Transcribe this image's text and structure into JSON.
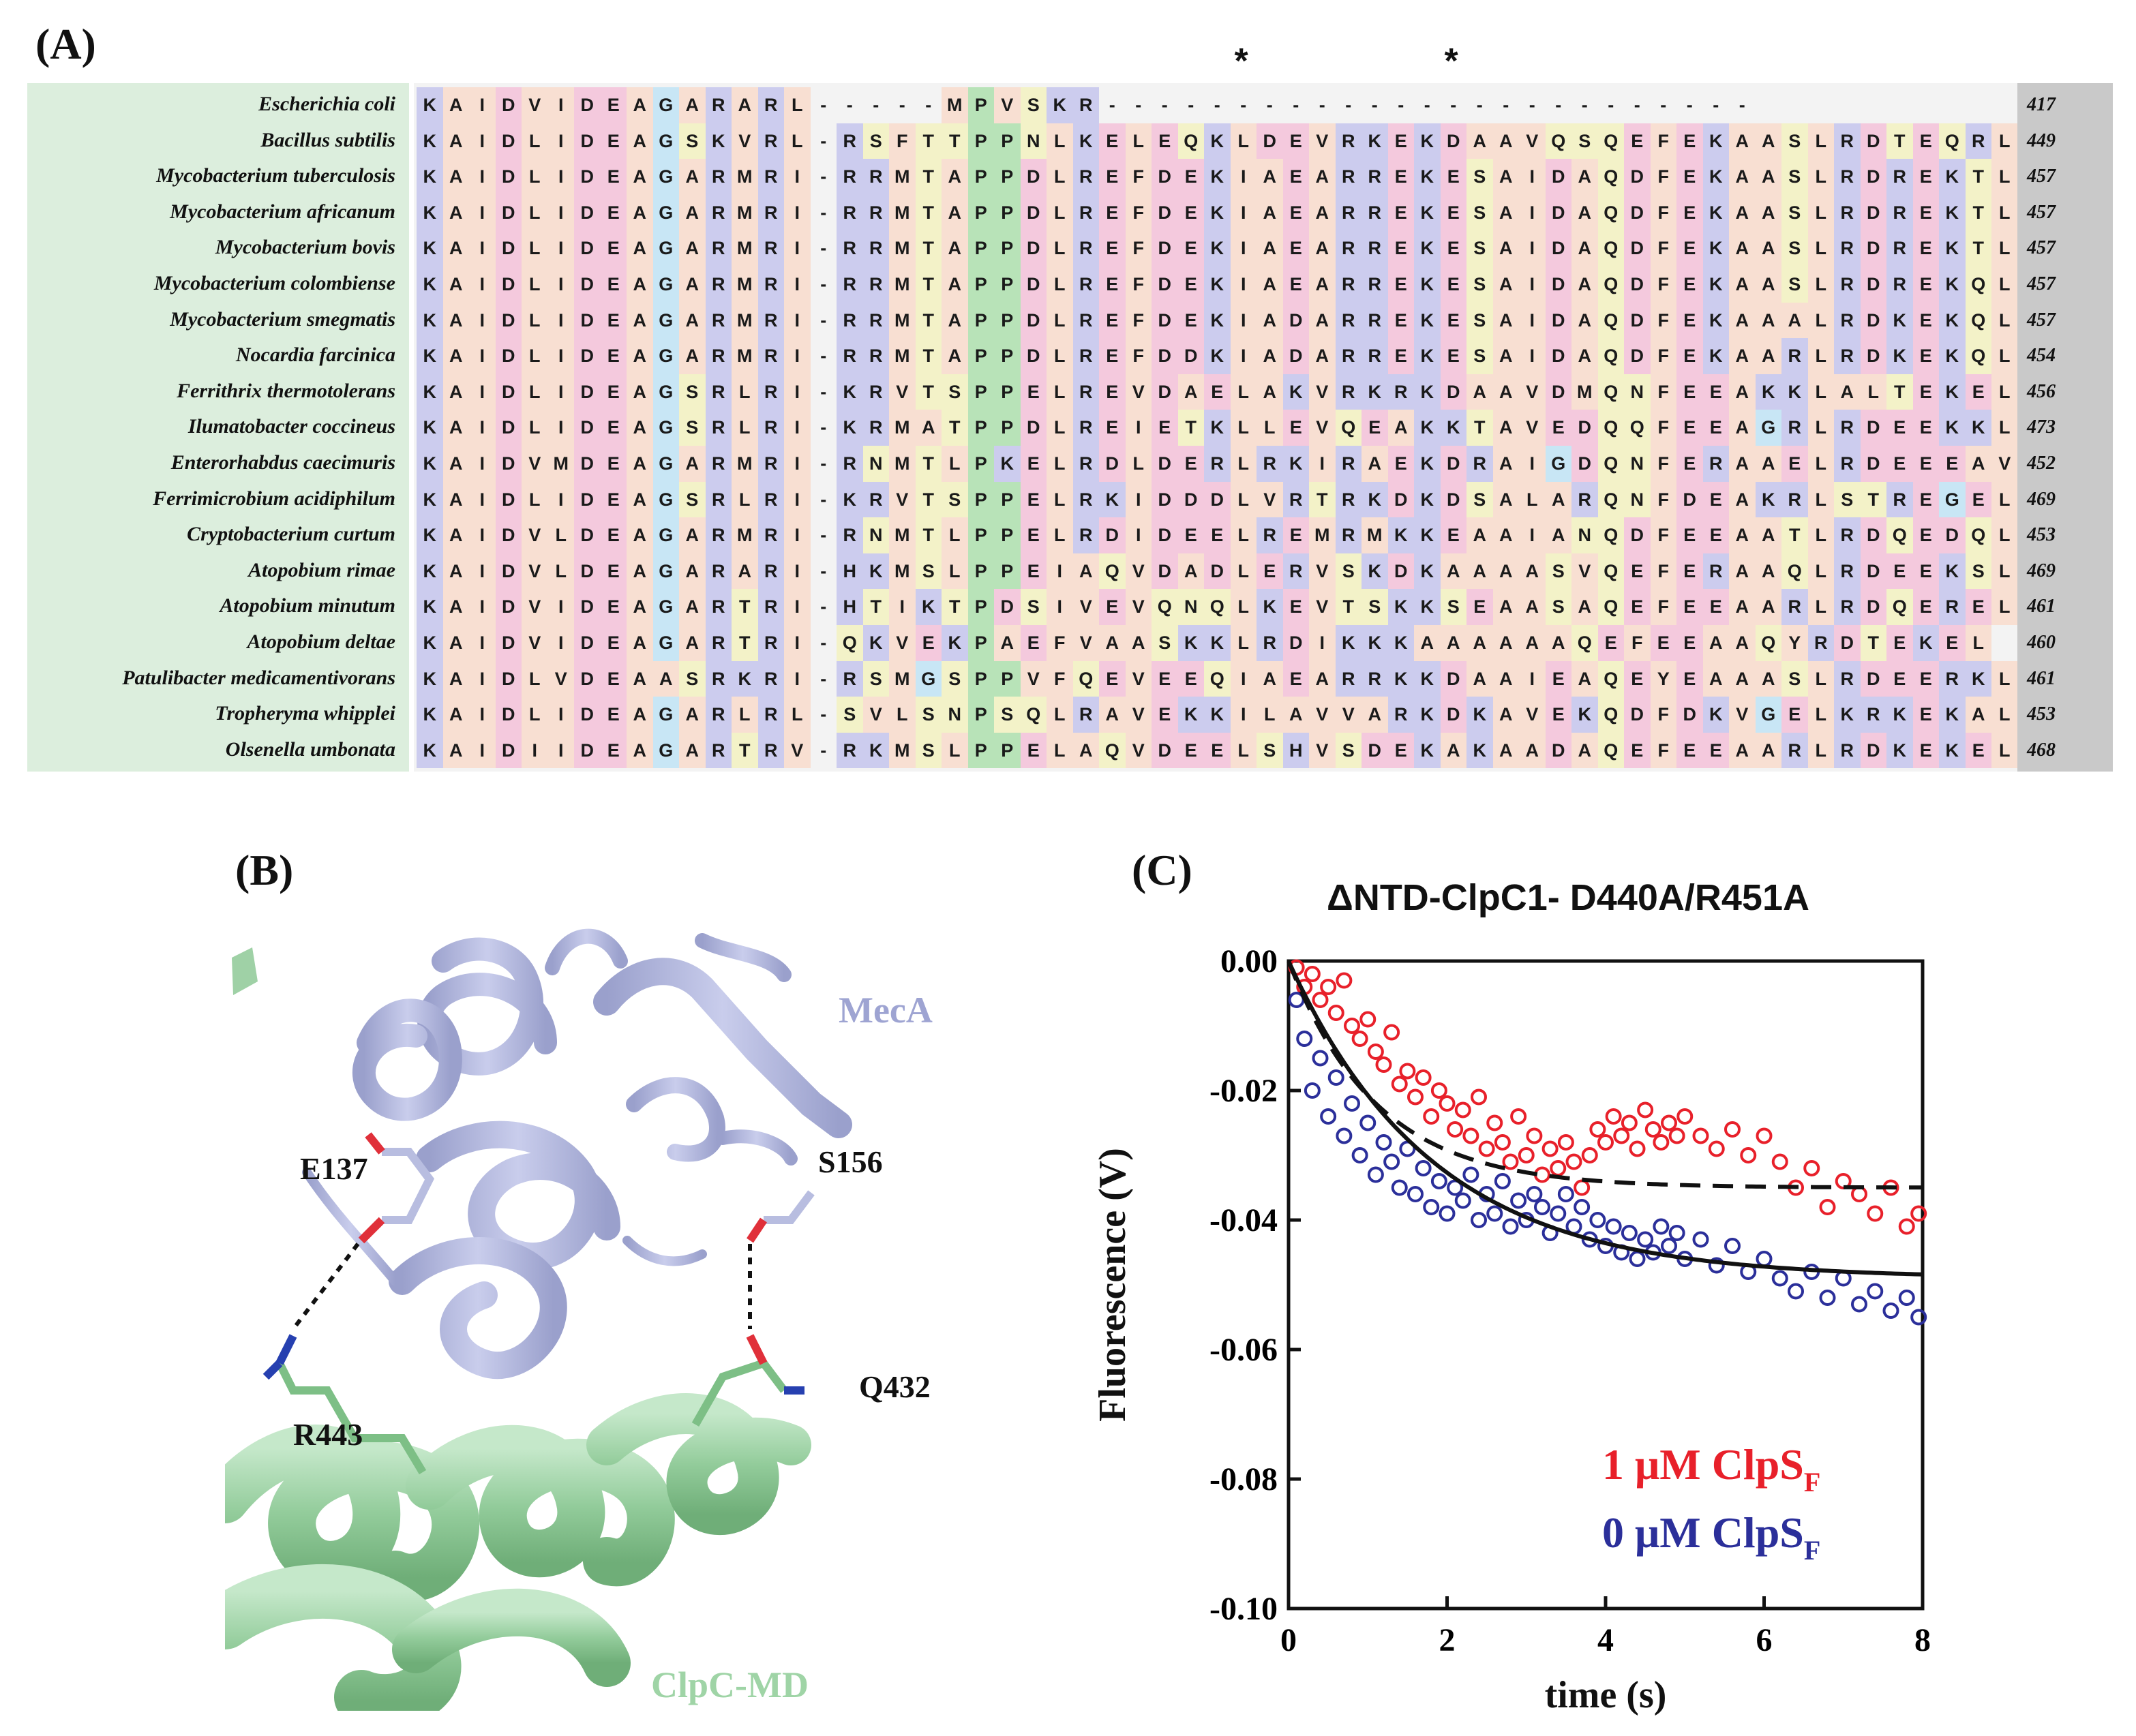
{
  "panels": {
    "a": "(A)",
    "b": "(B)",
    "c": "(C)"
  },
  "alignment": {
    "stars": [
      "*",
      "*"
    ],
    "star_columns": [
      31,
      39
    ],
    "rows": [
      {
        "species": "Escherichia coli",
        "seq": "KAIDVIDEAGARARL-----MPVSKR-------------------------",
        "num": "417"
      },
      {
        "species": "Bacillus subtilis",
        "seq": "KAIDLIDEAGSKVRL-RSFTTPPNLKELEQKLDEVRKEKDAAVQSQEFEKAASLRDTEQRL",
        "num": "449"
      },
      {
        "species": "Mycobacterium tuberculosis",
        "seq": "KAIDLIDEAGARMRI-RRMTAPPDLREFDEKIAEARREKESAIDAQDFEKAASLRDREKTL",
        "num": "457"
      },
      {
        "species": "Mycobacterium africanum",
        "seq": "KAIDLIDEAGARMRI-RRMTAPPDLREFDEKIAEARREKESAIDAQDFEKAASLRDREKTL",
        "num": "457"
      },
      {
        "species": "Mycobacterium bovis",
        "seq": "KAIDLIDEAGARMRI-RRMTAPPDLREFDEKIAEARREKESAIDAQDFEKAASLRDREKTL",
        "num": "457"
      },
      {
        "species": "Mycobacterium colombiense",
        "seq": "KAIDLIDEAGARMRI-RRMTAPPDLREFDEKIAEARREKESAIDAQDFEKAASLRDREKQL",
        "num": "457"
      },
      {
        "species": "Mycobacterium smegmatis",
        "seq": "KAIDLIDEAGARMRI-RRMTAPPDLREFDEKIADARREKESAIDAQDFEKAAALRDKEKQL",
        "num": "457"
      },
      {
        "species": "Nocardia farcinica",
        "seq": "KAIDLIDEAGARMRI-RRMTAPPDLREFDDKIADARREKESAIDAQDFEKAARLRDKEKQL",
        "num": "454"
      },
      {
        "species": "Ferrithrix thermotolerans",
        "seq": "KAIDLIDEAGSRLRI-KRVTSPPELREVDAELAKVRKRKDAAVDMQNFEEAKKLALTEKEL",
        "num": "456"
      },
      {
        "species": "Ilumatobacter coccineus",
        "seq": "KAIDLIDEAGSRLRI-KRMATPPDLREIETKLLEVQEAKKTAVEDQQFEEAGRLRDEEKKL",
        "num": "473"
      },
      {
        "species": "Enterorhabdus caecimuris",
        "seq": "KAIDVMDEAGARMRI-RNMTLPKELRDLDERLRKIRAEKDRAIGDQNFERAAELRDEEEAV",
        "num": "452"
      },
      {
        "species": "Ferrimicrobium acidiphilum",
        "seq": "KAIDLIDEAGSRLRI-KRVTSPPELRKIDDDLVRTRKDKDSALARQNFDEAKRLSTREGEL",
        "num": "469"
      },
      {
        "species": "Cryptobacterium curtum",
        "seq": "KAIDVLDEAGARMRI-RNMTLPPELRDIDEELREMRMKKEAAIANQDFEEAATLRDQEDQL",
        "num": "453"
      },
      {
        "species": "Atopobium rimae",
        "seq": "KAIDVLDEAGARARI-HKMSLPPEIAQVDADLERVSKDKAAAASVQEFERAAQLRDEEKSL",
        "num": "469"
      },
      {
        "species": "Atopobium minutum",
        "seq": "KAIDVIDEAGARTRI-HTIKTPDSIVEVQNQLKEVTSKKSEAASAQEFEEAARLRDQEREL",
        "num": "461"
      },
      {
        "species": "Atopobium deltae",
        "seq": "KAIDVIDEAGARTRI-QKVEKPAEFVAASKKLRDIKKKAAAAAAQEFEEAAQYRDTEKEL",
        "num": "460"
      },
      {
        "species": "Patulibacter medicamentivorans",
        "seq": "KAIDLVDEAASRKRI-RSMGSPPVFQEVEEQIAEARRKKDAAIEAQEYEAAASLRDEERKL",
        "num": "461"
      },
      {
        "species": "Tropheryma whipplei",
        "seq": "KAIDLIDEAGARLRL-SVLSNPSQLRAVEKKILAVVARKDKAVEKQDFDKVGELKRKEKAL",
        "num": "453"
      },
      {
        "species": "Olsenella umbonata",
        "seq": "KAIDIIDEAGARTRV-RKMSLPPELAQVDEELSHVSDEKAKAADAQEFEEAARLRDKEKEL",
        "num": "468"
      }
    ]
  },
  "structure": {
    "labels": {
      "meca": "MecA",
      "clpc": "ClpC-MD",
      "e137": "E137",
      "s156": "S156",
      "r443": "R443",
      "q432": "Q432"
    },
    "colors": {
      "meca": "#b8bde0",
      "clpc": "#a6d8ad"
    }
  },
  "legend": {
    "s1_prefix": "1 μM ClpS",
    "s1_sub": "F",
    "s2_prefix": "0 μM ClpS",
    "s2_sub": "F"
  },
  "chart_data": {
    "type": "scatter",
    "title": "ΔNTD-ClpC1- D440A/R451A",
    "xlabel": "time (s)",
    "ylabel": "Fluorescence (V)",
    "xlim": [
      0,
      8
    ],
    "ylim": [
      -0.1,
      0.0
    ],
    "xticks": [
      "0",
      "2",
      "4",
      "6",
      "8"
    ],
    "yticks": [
      "0.00",
      "-0.02",
      "-0.04",
      "-0.06",
      "-0.08",
      "-0.10"
    ],
    "series": [
      {
        "name": "1 μM ClpS_F",
        "color": "#e8202a",
        "fit": "dashed",
        "fit_params": {
          "a": 0.036,
          "k": 0.9,
          "c": -0.035
        },
        "points": [
          [
            0.1,
            -0.001
          ],
          [
            0.2,
            -0.004
          ],
          [
            0.3,
            -0.002
          ],
          [
            0.4,
            -0.006
          ],
          [
            0.5,
            -0.004
          ],
          [
            0.6,
            -0.008
          ],
          [
            0.7,
            -0.003
          ],
          [
            0.8,
            -0.01
          ],
          [
            0.9,
            -0.012
          ],
          [
            1.0,
            -0.009
          ],
          [
            1.1,
            -0.014
          ],
          [
            1.2,
            -0.016
          ],
          [
            1.3,
            -0.011
          ],
          [
            1.4,
            -0.019
          ],
          [
            1.5,
            -0.017
          ],
          [
            1.6,
            -0.021
          ],
          [
            1.7,
            -0.018
          ],
          [
            1.8,
            -0.024
          ],
          [
            1.9,
            -0.02
          ],
          [
            2.0,
            -0.022
          ],
          [
            2.1,
            -0.026
          ],
          [
            2.2,
            -0.023
          ],
          [
            2.3,
            -0.027
          ],
          [
            2.4,
            -0.021
          ],
          [
            2.5,
            -0.029
          ],
          [
            2.6,
            -0.025
          ],
          [
            2.7,
            -0.028
          ],
          [
            2.8,
            -0.031
          ],
          [
            2.9,
            -0.024
          ],
          [
            3.0,
            -0.03
          ],
          [
            3.1,
            -0.027
          ],
          [
            3.2,
            -0.033
          ],
          [
            3.3,
            -0.029
          ],
          [
            3.4,
            -0.032
          ],
          [
            3.5,
            -0.028
          ],
          [
            3.6,
            -0.031
          ],
          [
            3.7,
            -0.035
          ],
          [
            3.8,
            -0.03
          ],
          [
            3.9,
            -0.026
          ],
          [
            4.0,
            -0.028
          ],
          [
            4.1,
            -0.024
          ],
          [
            4.2,
            -0.027
          ],
          [
            4.3,
            -0.025
          ],
          [
            4.4,
            -0.029
          ],
          [
            4.5,
            -0.023
          ],
          [
            4.6,
            -0.026
          ],
          [
            4.7,
            -0.028
          ],
          [
            4.8,
            -0.025
          ],
          [
            4.9,
            -0.027
          ],
          [
            5.0,
            -0.024
          ],
          [
            5.2,
            -0.027
          ],
          [
            5.4,
            -0.029
          ],
          [
            5.6,
            -0.026
          ],
          [
            5.8,
            -0.03
          ],
          [
            6.0,
            -0.027
          ],
          [
            6.2,
            -0.031
          ],
          [
            6.4,
            -0.035
          ],
          [
            6.6,
            -0.032
          ],
          [
            6.8,
            -0.038
          ],
          [
            7.0,
            -0.034
          ],
          [
            7.2,
            -0.036
          ],
          [
            7.4,
            -0.039
          ],
          [
            7.6,
            -0.035
          ],
          [
            7.8,
            -0.041
          ],
          [
            7.95,
            -0.039
          ]
        ]
      },
      {
        "name": "0 μM ClpS_F",
        "color": "#2b2f9a",
        "fit": "solid",
        "fit_params": {
          "a": 0.042,
          "k": 0.55,
          "c": -0.049
        },
        "points": [
          [
            0.1,
            -0.006
          ],
          [
            0.2,
            -0.012
          ],
          [
            0.3,
            -0.02
          ],
          [
            0.4,
            -0.015
          ],
          [
            0.5,
            -0.024
          ],
          [
            0.6,
            -0.018
          ],
          [
            0.7,
            -0.027
          ],
          [
            0.8,
            -0.022
          ],
          [
            0.9,
            -0.03
          ],
          [
            1.0,
            -0.025
          ],
          [
            1.1,
            -0.033
          ],
          [
            1.2,
            -0.028
          ],
          [
            1.3,
            -0.031
          ],
          [
            1.4,
            -0.035
          ],
          [
            1.5,
            -0.029
          ],
          [
            1.6,
            -0.036
          ],
          [
            1.7,
            -0.032
          ],
          [
            1.8,
            -0.038
          ],
          [
            1.9,
            -0.034
          ],
          [
            2.0,
            -0.039
          ],
          [
            2.1,
            -0.035
          ],
          [
            2.2,
            -0.037
          ],
          [
            2.3,
            -0.033
          ],
          [
            2.4,
            -0.04
          ],
          [
            2.5,
            -0.036
          ],
          [
            2.6,
            -0.039
          ],
          [
            2.7,
            -0.034
          ],
          [
            2.8,
            -0.041
          ],
          [
            2.9,
            -0.037
          ],
          [
            3.0,
            -0.04
          ],
          [
            3.1,
            -0.036
          ],
          [
            3.2,
            -0.038
          ],
          [
            3.3,
            -0.042
          ],
          [
            3.4,
            -0.039
          ],
          [
            3.5,
            -0.036
          ],
          [
            3.6,
            -0.041
          ],
          [
            3.7,
            -0.038
          ],
          [
            3.8,
            -0.043
          ],
          [
            3.9,
            -0.04
          ],
          [
            4.0,
            -0.044
          ],
          [
            4.1,
            -0.041
          ],
          [
            4.2,
            -0.045
          ],
          [
            4.3,
            -0.042
          ],
          [
            4.4,
            -0.046
          ],
          [
            4.5,
            -0.043
          ],
          [
            4.6,
            -0.045
          ],
          [
            4.7,
            -0.041
          ],
          [
            4.8,
            -0.044
          ],
          [
            4.9,
            -0.042
          ],
          [
            5.0,
            -0.046
          ],
          [
            5.2,
            -0.043
          ],
          [
            5.4,
            -0.047
          ],
          [
            5.6,
            -0.044
          ],
          [
            5.8,
            -0.048
          ],
          [
            6.0,
            -0.046
          ],
          [
            6.2,
            -0.049
          ],
          [
            6.4,
            -0.051
          ],
          [
            6.6,
            -0.048
          ],
          [
            6.8,
            -0.052
          ],
          [
            7.0,
            -0.049
          ],
          [
            7.2,
            -0.053
          ],
          [
            7.4,
            -0.051
          ],
          [
            7.6,
            -0.054
          ],
          [
            7.8,
            -0.052
          ],
          [
            7.95,
            -0.055
          ]
        ]
      }
    ]
  }
}
